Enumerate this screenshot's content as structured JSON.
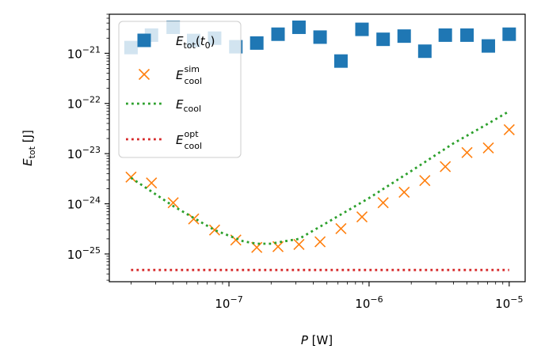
{
  "chart_data": {
    "type": "scatter",
    "xscale": "log",
    "yscale": "log",
    "xlim": [
      1.4e-08,
      1.3e-05
    ],
    "ylim": [
      2.8e-26,
      6e-21
    ],
    "xlabel": "P [W]",
    "ylabel": "E_tot [J]",
    "xticks": [
      {
        "value": 1e-07,
        "label": "10^-7"
      },
      {
        "value": 1e-06,
        "label": "10^-6"
      },
      {
        "value": 1e-05,
        "label": "10^-5"
      }
    ],
    "yticks": [
      {
        "value": 1e-25,
        "label": "10^-25"
      },
      {
        "value": 1e-24,
        "label": "10^-24"
      },
      {
        "value": 1e-23,
        "label": "10^-23"
      },
      {
        "value": 1e-22,
        "label": "10^-22"
      },
      {
        "value": 1e-21,
        "label": "10^-21"
      }
    ],
    "legend_position": "upper-left",
    "series": [
      {
        "name": "E_tot(t_0)",
        "marker": "square",
        "color": "#1f77b4",
        "x": [
          2e-08,
          2.8e-08,
          4e-08,
          5.6e-08,
          7.9e-08,
          1.12e-07,
          1.58e-07,
          2.24e-07,
          3.16e-07,
          4.47e-07,
          6.3e-07,
          8.9e-07,
          1.26e-06,
          1.78e-06,
          2.5e-06,
          3.5e-06,
          5e-06,
          7.1e-06,
          1e-05
        ],
        "y": [
          1.3e-21,
          2.3e-21,
          3.3e-21,
          1.8e-21,
          2e-21,
          1.35e-21,
          1.6e-21,
          2.4e-21,
          3.3e-21,
          2.1e-21,
          7e-22,
          3e-21,
          1.9e-21,
          2.2e-21,
          1.1e-21,
          2.3e-21,
          2.3e-21,
          1.4e-21,
          2.4e-21
        ]
      },
      {
        "name": "E_cool^sim",
        "marker": "x",
        "color": "#ff7f0e",
        "x": [
          2e-08,
          2.8e-08,
          4e-08,
          5.6e-08,
          7.9e-08,
          1.12e-07,
          1.58e-07,
          2.24e-07,
          3.16e-07,
          4.47e-07,
          6.3e-07,
          8.9e-07,
          1.26e-06,
          1.78e-06,
          2.5e-06,
          3.5e-06,
          5e-06,
          7.1e-06,
          1e-05
        ],
        "y": [
          3.4e-24,
          2.6e-24,
          1.05e-24,
          5e-25,
          3e-25,
          1.9e-25,
          1.35e-25,
          1.4e-25,
          1.55e-25,
          1.75e-25,
          3.2e-25,
          5.5e-25,
          1.05e-24,
          1.7e-24,
          2.9e-24,
          5.5e-24,
          1.05e-23,
          1.3e-23,
          3e-23
        ]
      },
      {
        "name": "E_cool",
        "line": "dotted",
        "color": "#2ca02c",
        "x": [
          2e-08,
          4e-08,
          7.9e-08,
          1.26e-07,
          1.58e-07,
          2e-07,
          2.24e-07,
          3.16e-07,
          5e-07,
          1e-06,
          2e-06,
          4e-06,
          7e-06,
          1e-05
        ],
        "y": [
          3.3e-24,
          9e-25,
          3e-25,
          1.8e-25,
          1.6e-25,
          1.6e-25,
          1.7e-25,
          2e-25,
          4.2e-25,
          1.3e-24,
          4.5e-24,
          1.6e-23,
          3.9e-23,
          7e-23
        ]
      },
      {
        "name": "E_cool^opt",
        "line": "dotted",
        "color": "#d62728",
        "x": [
          2e-08,
          1e-05
        ],
        "y": [
          4.8e-26,
          4.8e-26
        ]
      }
    ],
    "legend": [
      {
        "base": "E",
        "sub": "tot",
        "sup": "",
        "suffix_pre": "(t",
        "suffix_sub": "0",
        "suffix_post": ")"
      },
      {
        "base": "E",
        "sub": "cool",
        "sup": "sim",
        "suffix_pre": "",
        "suffix_sub": "",
        "suffix_post": ""
      },
      {
        "base": "E",
        "sub": "cool",
        "sup": "",
        "suffix_pre": "",
        "suffix_sub": "",
        "suffix_post": ""
      },
      {
        "base": "E",
        "sub": "cool",
        "sup": "opt",
        "suffix_pre": "",
        "suffix_sub": "",
        "suffix_post": ""
      }
    ]
  }
}
